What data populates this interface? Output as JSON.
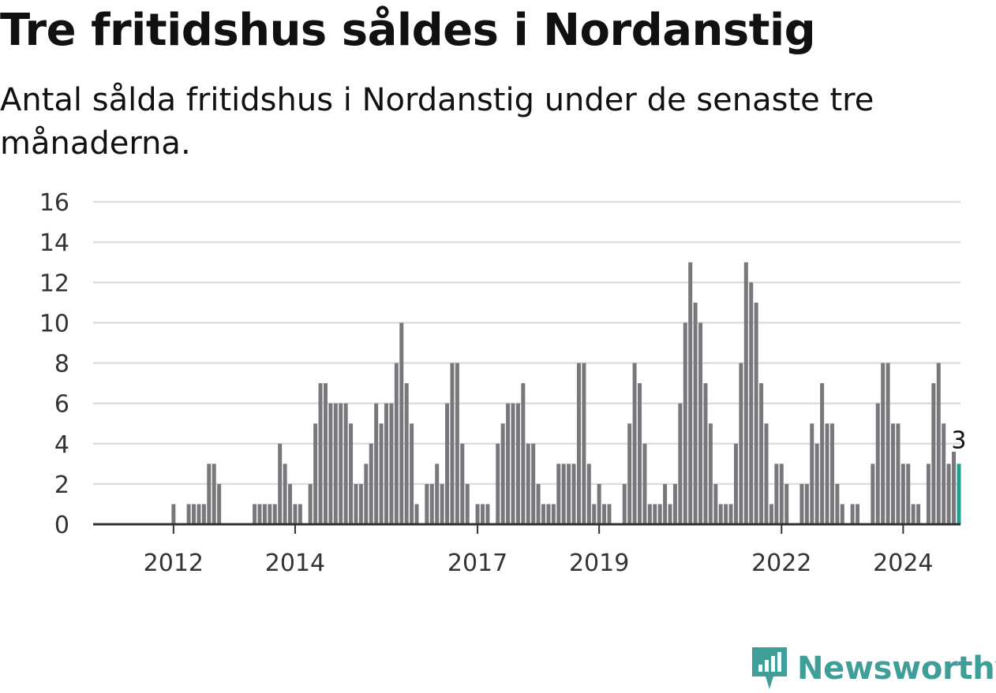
{
  "title": "Tre fritidshus såldes i Nordanstig",
  "subtitle": "Antal sålda fritidshus i Nordanstig under de senaste tre månaderna.",
  "logo": {
    "text": "Newsworthy",
    "icon": "newsworthy-chart-icon"
  },
  "colors": {
    "bar": "#78787c",
    "highlight": "#1f9e92",
    "grid": "#dddddd",
    "axis": "#333333",
    "brand": "#3f9e98"
  },
  "chart_data": {
    "type": "bar",
    "title": "Tre fritidshus såldes i Nordanstig",
    "subtitle": "Antal sålda fritidshus i Nordanstig under de senaste tre månaderna.",
    "xlabel": "",
    "ylabel": "",
    "ylim": [
      0,
      16
    ],
    "yticks": [
      0,
      2,
      4,
      6,
      8,
      10,
      12,
      14,
      16
    ],
    "xticks": [
      "2012",
      "2014",
      "2017",
      "2019",
      "2022",
      "2024"
    ],
    "xtick_index": [
      8,
      32,
      68,
      92,
      128,
      152
    ],
    "grid": true,
    "legend": "none",
    "last_value_label": "3",
    "values": [
      0,
      0,
      0,
      0,
      0,
      0,
      0,
      0,
      1,
      0,
      0,
      1,
      1,
      1,
      1,
      3,
      3,
      2,
      0,
      0,
      0,
      0,
      0,
      0,
      1,
      1,
      1,
      1,
      1,
      4,
      3,
      2,
      1,
      1,
      0,
      2,
      5,
      7,
      7,
      6,
      6,
      6,
      6,
      5,
      2,
      2,
      3,
      4,
      6,
      5,
      6,
      6,
      8,
      10,
      7,
      5,
      1,
      0,
      2,
      2,
      3,
      2,
      6,
      8,
      8,
      4,
      2,
      0,
      1,
      1,
      1,
      0,
      4,
      5,
      6,
      6,
      6,
      7,
      4,
      4,
      2,
      1,
      1,
      1,
      3,
      3,
      3,
      3,
      8,
      8,
      3,
      1,
      2,
      1,
      1,
      0,
      0,
      2,
      5,
      8,
      7,
      4,
      1,
      1,
      1,
      2,
      1,
      2,
      6,
      10,
      13,
      11,
      10,
      7,
      5,
      2,
      1,
      1,
      1,
      4,
      8,
      13,
      12,
      11,
      7,
      5,
      1,
      3,
      3,
      2,
      0,
      0,
      2,
      2,
      5,
      4,
      7,
      5,
      5,
      2,
      1,
      0,
      1,
      1,
      0,
      0,
      3,
      6,
      8,
      8,
      5,
      5,
      3,
      3,
      1,
      1,
      0,
      3,
      7,
      8,
      5,
      3,
      3.6,
      3
    ]
  }
}
